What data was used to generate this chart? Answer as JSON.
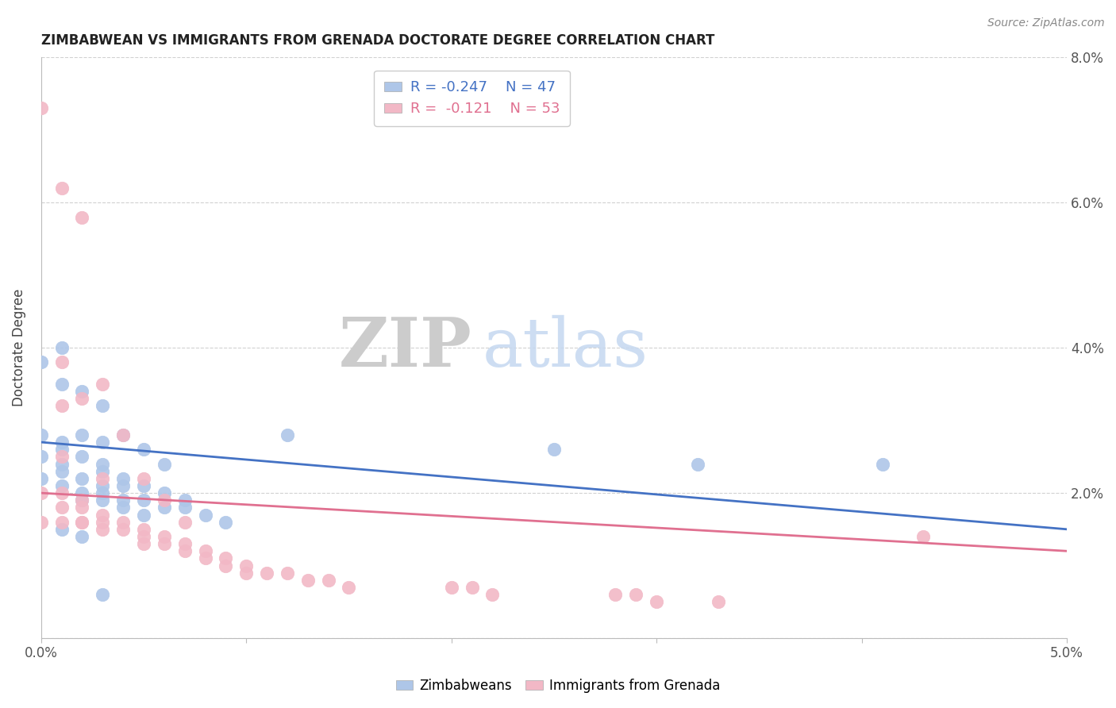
{
  "title": "ZIMBABWEAN VS IMMIGRANTS FROM GRENADA DOCTORATE DEGREE CORRELATION CHART",
  "source_text": "Source: ZipAtlas.com",
  "ylabel": "Doctorate Degree",
  "xlim": [
    0.0,
    0.05
  ],
  "ylim": [
    0.0,
    0.08
  ],
  "xtick_positions": [
    0.0,
    0.01,
    0.02,
    0.03,
    0.04,
    0.05
  ],
  "xtick_labels": [
    "0.0%",
    "",
    "",
    "",
    "",
    "5.0%"
  ],
  "ytick_positions": [
    0.0,
    0.02,
    0.04,
    0.06,
    0.08
  ],
  "ytick_labels_right": [
    "",
    "2.0%",
    "4.0%",
    "6.0%",
    "8.0%"
  ],
  "legend_r1": "R = -0.247",
  "legend_n1": "N = 47",
  "legend_r2": "R =  -0.121",
  "legend_n2": "N = 53",
  "blue_color": "#aec6e8",
  "pink_color": "#f2b8c6",
  "blue_line_color": "#4472c4",
  "pink_line_color": "#e07090",
  "watermark_zip": "ZIP",
  "watermark_atlas": "atlas",
  "blue_scatter_x": [
    0.0,
    0.001,
    0.001,
    0.002,
    0.002,
    0.003,
    0.003,
    0.004,
    0.005,
    0.006,
    0.0,
    0.001,
    0.001,
    0.002,
    0.003,
    0.003,
    0.004,
    0.004,
    0.005,
    0.006,
    0.0,
    0.001,
    0.002,
    0.002,
    0.003,
    0.004,
    0.005,
    0.0,
    0.001,
    0.001,
    0.002,
    0.003,
    0.003,
    0.004,
    0.005,
    0.006,
    0.007,
    0.007,
    0.008,
    0.009,
    0.012,
    0.025,
    0.032,
    0.041,
    0.001,
    0.002,
    0.003
  ],
  "blue_scatter_y": [
    0.038,
    0.04,
    0.035,
    0.034,
    0.028,
    0.027,
    0.032,
    0.028,
    0.026,
    0.024,
    0.025,
    0.024,
    0.023,
    0.022,
    0.021,
    0.02,
    0.021,
    0.019,
    0.019,
    0.018,
    0.022,
    0.021,
    0.02,
    0.019,
    0.019,
    0.018,
    0.017,
    0.028,
    0.027,
    0.026,
    0.025,
    0.024,
    0.023,
    0.022,
    0.021,
    0.02,
    0.019,
    0.018,
    0.017,
    0.016,
    0.028,
    0.026,
    0.024,
    0.024,
    0.015,
    0.014,
    0.006
  ],
  "pink_scatter_x": [
    0.0,
    0.0,
    0.0,
    0.001,
    0.001,
    0.001,
    0.001,
    0.002,
    0.002,
    0.002,
    0.003,
    0.003,
    0.003,
    0.004,
    0.004,
    0.005,
    0.005,
    0.005,
    0.006,
    0.006,
    0.007,
    0.007,
    0.008,
    0.008,
    0.009,
    0.009,
    0.01,
    0.01,
    0.011,
    0.012,
    0.013,
    0.014,
    0.015,
    0.02,
    0.021,
    0.022,
    0.028,
    0.029,
    0.03,
    0.033,
    0.001,
    0.002,
    0.003,
    0.004,
    0.005,
    0.006,
    0.007,
    0.001,
    0.002,
    0.003,
    0.001,
    0.002,
    0.043
  ],
  "pink_scatter_y": [
    0.073,
    0.02,
    0.016,
    0.025,
    0.02,
    0.018,
    0.016,
    0.019,
    0.018,
    0.016,
    0.017,
    0.016,
    0.015,
    0.016,
    0.015,
    0.015,
    0.014,
    0.013,
    0.014,
    0.013,
    0.013,
    0.012,
    0.012,
    0.011,
    0.011,
    0.01,
    0.01,
    0.009,
    0.009,
    0.009,
    0.008,
    0.008,
    0.007,
    0.007,
    0.007,
    0.006,
    0.006,
    0.006,
    0.005,
    0.005,
    0.062,
    0.058,
    0.035,
    0.028,
    0.022,
    0.019,
    0.016,
    0.038,
    0.033,
    0.022,
    0.032,
    0.016,
    0.014
  ],
  "blue_trend_start": 0.027,
  "blue_trend_end": 0.015,
  "pink_trend_start": 0.02,
  "pink_trend_end": 0.012
}
